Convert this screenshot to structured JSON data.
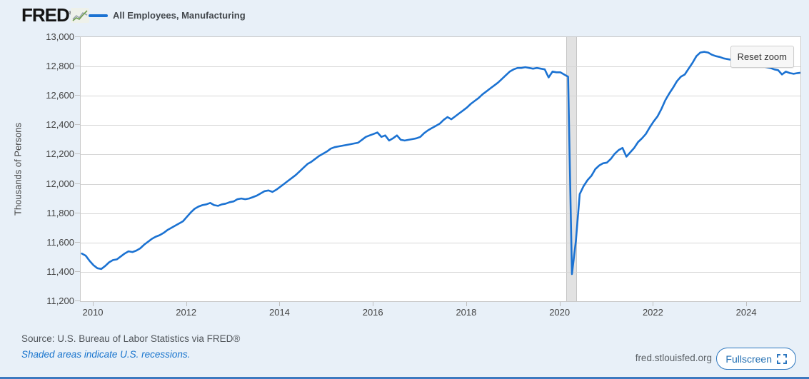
{
  "header": {
    "logo_text": "FRED",
    "logo_mark": "®",
    "legend_label": "All Employees, Manufacturing"
  },
  "chart": {
    "reset_zoom_label": "Reset zoom",
    "y_axis_title": "Thousands of Persons"
  },
  "footer": {
    "source": "Source: U.S. Bureau of Labor Statistics via FRED®",
    "recession_note": "Shaded areas indicate U.S. recessions.",
    "site": "fred.stlouisfed.org",
    "fullscreen_label": "Fullscreen"
  },
  "colors": {
    "line": "#1b72d2",
    "link_blue": "#1874cd",
    "button_blue": "#2d77bf",
    "page_bg": "#e8f0f8",
    "recession_band": "#e2e2e2",
    "gridline": "#d6d6d6"
  },
  "chart_data": {
    "type": "line",
    "title": "All Employees, Manufacturing",
    "xlabel": "",
    "ylabel": "Thousands of Persons",
    "legend_position": "top-left",
    "grid": "horizontal-only",
    "ylim": [
      11200,
      13000
    ],
    "xlim": [
      2009.725,
      2025.145
    ],
    "y_tick_values": [
      13000,
      12800,
      12600,
      12400,
      12200,
      12000,
      11800,
      11600,
      11400,
      11200
    ],
    "y_tick_labels": [
      "13,000",
      "12,800",
      "12,600",
      "12,400",
      "12,200",
      "12,000",
      "11,800",
      "11,600",
      "11,400",
      "11,200"
    ],
    "x_tick_values": [
      2010,
      2012,
      2014,
      2016,
      2018,
      2020,
      2022,
      2024
    ],
    "x_tick_labels": [
      "2010",
      "2012",
      "2014",
      "2016",
      "2018",
      "2020",
      "2022",
      "2024"
    ],
    "recession_band": {
      "start": 2020.13,
      "end": 2020.35
    },
    "series": [
      {
        "name": "All Employees, Manufacturing",
        "units": "Thousands of Persons",
        "start_year": 2009.75,
        "interval_years": 0.0833333,
        "values": [
          11525,
          11510,
          11475,
          11445,
          11425,
          11420,
          11440,
          11465,
          11480,
          11485,
          11505,
          11525,
          11540,
          11535,
          11545,
          11560,
          11585,
          11605,
          11625,
          11640,
          11650,
          11665,
          11685,
          11700,
          11715,
          11730,
          11745,
          11775,
          11805,
          11830,
          11845,
          11855,
          11860,
          11870,
          11855,
          11850,
          11860,
          11865,
          11875,
          11880,
          11895,
          11900,
          11895,
          11900,
          11910,
          11920,
          11935,
          11950,
          11955,
          11945,
          11960,
          11980,
          12000,
          12020,
          12040,
          12060,
          12085,
          12110,
          12135,
          12150,
          12170,
          12190,
          12205,
          12220,
          12240,
          12250,
          12255,
          12260,
          12265,
          12270,
          12275,
          12280,
          12300,
          12320,
          12330,
          12340,
          12350,
          12320,
          12330,
          12295,
          12310,
          12330,
          12300,
          12295,
          12300,
          12305,
          12310,
          12320,
          12345,
          12365,
          12380,
          12395,
          12410,
          12435,
          12455,
          12440,
          12460,
          12480,
          12500,
          12520,
          12545,
          12565,
          12585,
          12610,
          12630,
          12650,
          12670,
          12690,
          12715,
          12740,
          12765,
          12780,
          12790,
          12790,
          12795,
          12790,
          12785,
          12790,
          12785,
          12780,
          12725,
          12765,
          12760,
          12760,
          12745,
          12730,
          11385,
          11610,
          11930,
          11985,
          12025,
          12055,
          12100,
          12125,
          12140,
          12145,
          12170,
          12205,
          12230,
          12245,
          12185,
          12215,
          12245,
          12285,
          12310,
          12340,
          12385,
          12425,
          12460,
          12510,
          12570,
          12615,
          12655,
          12700,
          12730,
          12745,
          12785,
          12825,
          12870,
          12895,
          12900,
          12895,
          12880,
          12870,
          12865,
          12855,
          12850,
          12845,
          12835,
          12830,
          12825,
          12820,
          12815,
          12810,
          12805,
          12800,
          12795,
          12790,
          12780,
          12775,
          12745,
          12765,
          12755,
          12750,
          12755,
          12758
        ]
      }
    ]
  }
}
